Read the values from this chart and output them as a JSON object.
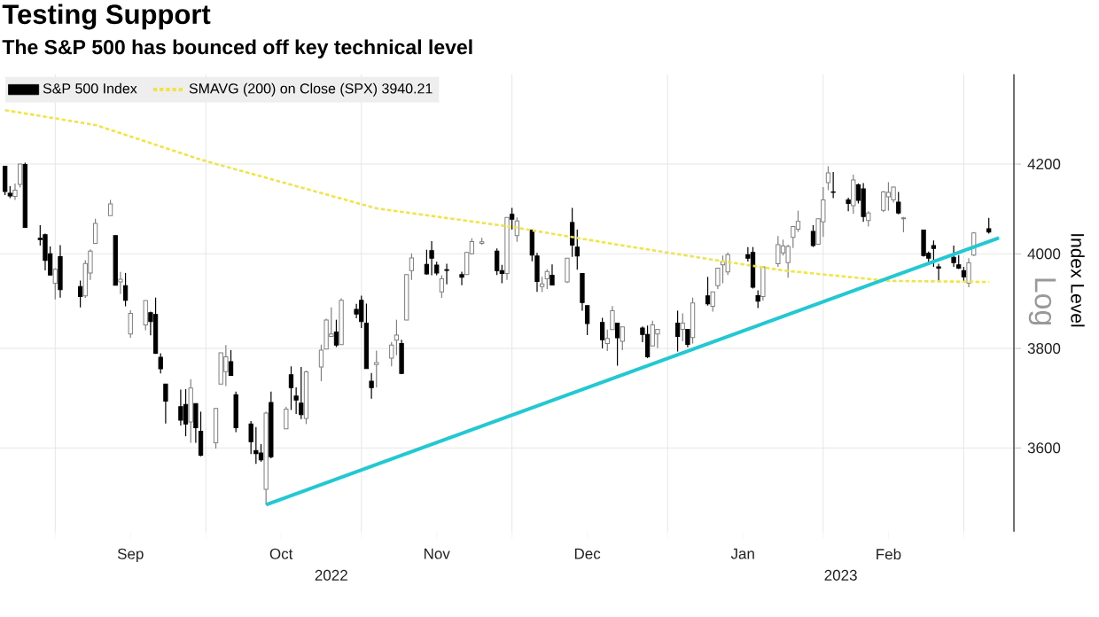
{
  "chart_data": {
    "type": "candlestick",
    "title": "Testing Support",
    "subtitle": "The S&P 500 has bounced off key technical level",
    "ylabel": "Index Level",
    "annotations": [
      "Log",
      "2022",
      "2023"
    ],
    "x": [
      "2022-08-22",
      "2022-08-23",
      "2022-08-24",
      "2022-08-25",
      "2022-08-26",
      "2022-08-29",
      "2022-08-30",
      "2022-08-31",
      "2022-09-01",
      "2022-09-02",
      "2022-09-06",
      "2022-09-07",
      "2022-09-08",
      "2022-09-09",
      "2022-09-12",
      "2022-09-13",
      "2022-09-14",
      "2022-09-15",
      "2022-09-16",
      "2022-09-19",
      "2022-09-20",
      "2022-09-21",
      "2022-09-22",
      "2022-09-23",
      "2022-09-26",
      "2022-09-27",
      "2022-09-28",
      "2022-09-29",
      "2022-09-30",
      "2022-10-03",
      "2022-10-04",
      "2022-10-05",
      "2022-10-06",
      "2022-10-07",
      "2022-10-10",
      "2022-10-11",
      "2022-10-12",
      "2022-10-13",
      "2022-10-14",
      "2022-10-17",
      "2022-10-18",
      "2022-10-19",
      "2022-10-20",
      "2022-10-21",
      "2022-10-24",
      "2022-10-25",
      "2022-10-26",
      "2022-10-27",
      "2022-10-28",
      "2022-10-31",
      "2022-11-01",
      "2022-11-02",
      "2022-11-03",
      "2022-11-04",
      "2022-11-07",
      "2022-11-08",
      "2022-11-09",
      "2022-11-10",
      "2022-11-11",
      "2022-11-14",
      "2022-11-15",
      "2022-11-16",
      "2022-11-17",
      "2022-11-18",
      "2022-11-21",
      "2022-11-22",
      "2022-11-23",
      "2022-11-25",
      "2022-11-28",
      "2022-11-29",
      "2022-11-30",
      "2022-12-01",
      "2022-12-02",
      "2022-12-05",
      "2022-12-06",
      "2022-12-07",
      "2022-12-08",
      "2022-12-09",
      "2022-12-12",
      "2022-12-13",
      "2022-12-14",
      "2022-12-15",
      "2022-12-16",
      "2022-12-19",
      "2022-12-20",
      "2022-12-21",
      "2022-12-22",
      "2022-12-23",
      "2022-12-27",
      "2022-12-28",
      "2022-12-29",
      "2022-12-30",
      "2023-01-03",
      "2023-01-04",
      "2023-01-05",
      "2023-01-06",
      "2023-01-09",
      "2023-01-10",
      "2023-01-11",
      "2023-01-12",
      "2023-01-13",
      "2023-01-17",
      "2023-01-18",
      "2023-01-19",
      "2023-01-20",
      "2023-01-23",
      "2023-01-24",
      "2023-01-25",
      "2023-01-26",
      "2023-01-27",
      "2023-01-30",
      "2023-01-31",
      "2023-02-01",
      "2023-02-02",
      "2023-02-03",
      "2023-02-06",
      "2023-02-07",
      "2023-02-08",
      "2023-02-09",
      "2023-02-10",
      "2023-02-13",
      "2023-02-14",
      "2023-02-15",
      "2023-02-16",
      "2023-02-17",
      "2023-02-21",
      "2023-02-22",
      "2023-02-23",
      "2023-02-24",
      "2023-02-27",
      "2023-02-28",
      "2023-03-01",
      "2023-03-02",
      "2023-03-03",
      "2023-03-06"
    ],
    "series": [
      {
        "name": "S&P 500 Index",
        "color": "#000000",
        "colors": [
          "#000000",
          "#000000",
          "#ffffff",
          "#ffffff",
          "#000000",
          "#000000",
          "#000000",
          "#000000",
          "#ffffff",
          "#000000",
          "#000000",
          "#ffffff",
          "#ffffff",
          "#ffffff",
          "#ffffff",
          "#000000",
          "#ffffff",
          "#000000",
          "#ffffff",
          "#ffffff",
          "#000000",
          "#000000",
          "#000000",
          "#000000",
          "#000000",
          "#000000",
          "#ffffff",
          "#000000",
          "#000000",
          "#ffffff",
          "#ffffff",
          "#ffffff",
          "#000000",
          "#000000",
          "#000000",
          "#000000",
          "#000000",
          "#ffffff",
          "#000000",
          "#ffffff",
          "#000000",
          "#000000",
          "#000000",
          "#ffffff",
          "#ffffff",
          "#ffffff",
          "#ffffff",
          "#000000",
          "#ffffff",
          "#000000",
          "#000000",
          "#000000",
          "#000000",
          "#ffffff",
          "#ffffff",
          "#ffffff",
          "#000000",
          "#ffffff",
          "#ffffff",
          "#000000",
          "#000000",
          "#000000",
          "#ffffff",
          "#000000",
          "#000000",
          "#ffffff",
          "#ffffff",
          "#ffffff",
          "#000000",
          "#000000",
          "#ffffff",
          "#000000",
          "#ffffff",
          "#000000",
          "#000000",
          "#ffffff",
          "#ffffff",
          "#000000",
          "#ffffff",
          "#000000",
          "#000000",
          "#000000",
          "#000000",
          "#000000",
          "#ffffff",
          "#ffffff",
          "#000000",
          "#ffffff",
          "#000000",
          "#000000",
          "#ffffff",
          "#ffffff",
          "#000000",
          "#ffffff",
          "#000000",
          "#ffffff",
          "#000000",
          "#ffffff",
          "#ffffff",
          "#ffffff",
          "#ffffff",
          "#000000",
          "#000000",
          "#000000",
          "#ffffff",
          "#ffffff",
          "#ffffff",
          "#ffffff",
          "#ffffff",
          "#ffffff",
          "#000000",
          "#ffffff",
          "#ffffff",
          "#ffffff",
          "#000000",
          "#000000",
          "#ffffff",
          "#000000",
          "#000000",
          "#ffffff",
          "#ffffff",
          "#ffffff",
          "#ffffff",
          "#000000",
          "#ffffff",
          "#000000",
          "#000000",
          "#000000",
          "#000000",
          "#000000",
          "#000000",
          "#000000",
          "#ffffff",
          "#ffffff",
          "#000000"
        ],
        "ohlc": [
          [
            4195,
            4196,
            4130,
            4138
          ],
          [
            4134,
            4150,
            4123,
            4128
          ],
          [
            4127,
            4156,
            4119,
            4141
          ],
          [
            4154,
            4200,
            4147,
            4200
          ],
          [
            4199,
            4203,
            4057,
            4058
          ],
          [
            4034,
            4063,
            4018,
            4031
          ],
          [
            4042,
            4044,
            3965,
            3986
          ],
          [
            4000,
            4016,
            3954,
            3955
          ],
          [
            3937,
            3970,
            3903,
            3967
          ],
          [
            3995,
            4019,
            3907,
            3924
          ],
          [
            3930,
            3943,
            3886,
            3909
          ],
          [
            3910,
            3987,
            3906,
            3980
          ],
          [
            3959,
            4010,
            3944,
            4006
          ],
          [
            4023,
            4077,
            4023,
            4067
          ],
          [
            4084,
            4119,
            4084,
            4110
          ],
          [
            4040,
            4040,
            3933,
            3933
          ],
          [
            3940,
            3961,
            3914,
            3946
          ],
          [
            3932,
            3959,
            3888,
            3901
          ],
          [
            3830,
            3880,
            3822,
            3873
          ],
          [
            3849,
            3900,
            3838,
            3900
          ],
          [
            3875,
            3877,
            3827,
            3856
          ],
          [
            3871,
            3907,
            3789,
            3790
          ],
          [
            3782,
            3790,
            3749,
            3758
          ],
          [
            3727,
            3727,
            3648,
            3693
          ],
          [
            3682,
            3716,
            3644,
            3655
          ],
          [
            3686,
            3717,
            3623,
            3647
          ],
          [
            3651,
            3737,
            3610,
            3719
          ],
          [
            3688,
            3688,
            3610,
            3640
          ],
          [
            3633,
            3672,
            3584,
            3586
          ],
          [
            3610,
            3679,
            3599,
            3678
          ],
          [
            3727,
            3791,
            3727,
            3791
          ],
          [
            3753,
            3807,
            3723,
            3783
          ],
          [
            3773,
            3797,
            3744,
            3745
          ],
          [
            3706,
            3712,
            3631,
            3640
          ],
          [
            3647,
            3653,
            3588,
            3612
          ],
          [
            3595,
            3641,
            3569,
            3589
          ],
          [
            3590,
            3608,
            3573,
            3577
          ],
          [
            3520,
            3672,
            3491,
            3669
          ],
          [
            3690,
            3712,
            3580,
            3583
          ],
          [
            3638,
            3682,
            3638,
            3677
          ],
          [
            3746,
            3763,
            3675,
            3720
          ],
          [
            3703,
            3721,
            3667,
            3695
          ],
          [
            3689,
            3762,
            3657,
            3666
          ],
          [
            3658,
            3755,
            3647,
            3752
          ],
          [
            3762,
            3808,
            3733,
            3797
          ],
          [
            3799,
            3862,
            3799,
            3859
          ],
          [
            3825,
            3886,
            3824,
            3830
          ],
          [
            3834,
            3860,
            3803,
            3807
          ],
          [
            3808,
            3905,
            3808,
            3901
          ],
          [
            3882,
            3893,
            3863,
            3872
          ],
          [
            3901,
            3911,
            3843,
            3856
          ],
          [
            3853,
            3894,
            3758,
            3759
          ],
          [
            3733,
            3750,
            3698,
            3720
          ],
          [
            3767,
            3796,
            3721,
            3771
          ],
          [
            3780,
            3814,
            3763,
            3807
          ],
          [
            3817,
            3860,
            3786,
            3828
          ],
          [
            3810,
            3818,
            3748,
            3749
          ],
          [
            3859,
            3956,
            3859,
            3956
          ],
          [
            3964,
            4001,
            3944,
            3992
          ],
          [
            3978,
            4009,
            3956,
            3957
          ],
          [
            4007,
            4028,
            3954,
            3991
          ],
          [
            3976,
            3983,
            3954,
            3959
          ],
          [
            3919,
            3954,
            3906,
            3947
          ],
          [
            3966,
            3979,
            3935,
            3965
          ],
          [
            3956,
            3962,
            3933,
            3950
          ],
          [
            3956,
            4004,
            3956,
            4003
          ],
          [
            4000,
            4034,
            3999,
            4027
          ],
          [
            4023,
            4035,
            4020,
            4026
          ],
          [
            4006,
            4012,
            3955,
            3964
          ],
          [
            3964,
            3977,
            3937,
            3958
          ],
          [
            3958,
            4080,
            3944,
            4080
          ],
          [
            4087,
            4101,
            4053,
            4076
          ],
          [
            4040,
            4080,
            4026,
            4072
          ],
          [
            4052,
            4053,
            3985,
            3998
          ],
          [
            3996,
            4002,
            3919,
            3941
          ],
          [
            3930,
            3951,
            3918,
            3936
          ],
          [
            3947,
            3967,
            3925,
            3963
          ],
          [
            3954,
            3978,
            3934,
            3934
          ],
          [
            3940,
            3991,
            3938,
            3991
          ],
          [
            4069,
            4101,
            3994,
            4019
          ],
          [
            4015,
            4053,
            3966,
            3996
          ],
          [
            3958,
            3958,
            3879,
            3896
          ],
          [
            3890,
            3890,
            3828,
            3852
          ],
          [
            3854,
            3864,
            3800,
            3818
          ],
          [
            3810,
            3839,
            3795,
            3821
          ],
          [
            3839,
            3889,
            3839,
            3879
          ],
          [
            3853,
            3853,
            3765,
            3822
          ],
          [
            3815,
            3845,
            3797,
            3845
          ],
          [
            3843,
            3846,
            3813,
            3829
          ],
          [
            3829,
            3848,
            3780,
            3783
          ],
          [
            3805,
            3858,
            3805,
            3849
          ],
          [
            3830,
            3840,
            3801,
            3840
          ],
          [
            3853,
            3879,
            3794,
            3825
          ],
          [
            3840,
            3873,
            3815,
            3853
          ],
          [
            3840,
            3840,
            3802,
            3809
          ],
          [
            3823,
            3907,
            3810,
            3895
          ],
          [
            3910,
            3951,
            3890,
            3893
          ],
          [
            3888,
            3919,
            3877,
            3919
          ],
          [
            3932,
            3970,
            3925,
            3970
          ],
          [
            3977,
            3997,
            3937,
            3983
          ],
          [
            3961,
            4003,
            3955,
            3999
          ],
          [
            3999,
            4015,
            3984,
            3991
          ],
          [
            4003,
            4015,
            3926,
            3929
          ],
          [
            3911,
            3922,
            3885,
            3899
          ],
          [
            3909,
            3973,
            3900,
            3973
          ],
          [
            3979,
            4039,
            3973,
            4020
          ],
          [
            4002,
            4031,
            3997,
            4017
          ],
          [
            3982,
            4020,
            3949,
            4016
          ],
          [
            4036,
            4061,
            4013,
            4060
          ],
          [
            4054,
            4095,
            4048,
            4071
          ],
          [
            4049,
            4063,
            4015,
            4018
          ],
          [
            4021,
            4077,
            4020,
            4077
          ],
          [
            4070,
            4148,
            4037,
            4119
          ],
          [
            4158,
            4195,
            4141,
            4180
          ],
          [
            4137,
            4182,
            4123,
            4136
          ],
          [
            4119,
            4124,
            4094,
            4111
          ],
          [
            4106,
            4176,
            4088,
            4164
          ],
          [
            4153,
            4156,
            4111,
            4118
          ],
          [
            4144,
            4157,
            4070,
            4082
          ],
          [
            4073,
            4094,
            4060,
            4090
          ],
          [
            4096,
            4139,
            4092,
            4137
          ],
          [
            4126,
            4159,
            4095,
            4136
          ],
          [
            4119,
            4149,
            4113,
            4148
          ],
          [
            4114,
            4137,
            4087,
            4090
          ],
          [
            4077,
            4081,
            4047,
            4079
          ],
          [
            4052,
            4052,
            3995,
            3997
          ],
          [
            4001,
            4005,
            3977,
            3991
          ],
          [
            4018,
            4029,
            3972,
            4012
          ],
          [
            3973,
            3979,
            3943,
            3970
          ],
          [
            3993,
            4018,
            3973,
            3982
          ],
          [
            3977,
            3998,
            3968,
            3970
          ],
          [
            3964,
            3972,
            3939,
            3951
          ],
          [
            3938,
            3991,
            3929,
            3981
          ],
          [
            3998,
            4048,
            3996,
            4046
          ],
          [
            4055,
            4079,
            4044,
            4048
          ]
        ]
      },
      {
        "name": "SMAVG (200)  on Close (SPX) 3940.21",
        "type": "line",
        "color": "#f0e448",
        "line_style": "dotted",
        "x": [
          "2022-08-22",
          "2022-09-09",
          "2022-09-30",
          "2022-10-19",
          "2022-11-04",
          "2022-12-01",
          "2022-12-22",
          "2023-01-09",
          "2023-01-24",
          "2023-02-14",
          "2023-03-06"
        ],
        "values": [
          4325,
          4290,
          4210,
          4150,
          4100,
          4059,
          4020,
          3990,
          3965,
          3942,
          3940.21
        ]
      },
      {
        "type": "line",
        "color": "#22c8d2",
        "line_style": "solid",
        "x": [
          "2022-10-13",
          "2023-03-08"
        ],
        "values": [
          3491,
          4035
        ]
      }
    ],
    "xlim": [
      "2022-08-21",
      "2023-03-11"
    ],
    "xticks": [
      {
        "value": "2022-09-01",
        "label": null
      },
      {
        "value": "2022-10-01",
        "label": null
      },
      {
        "value": "2022-11-01",
        "label": null
      },
      {
        "value": "2022-12-01",
        "label": null
      },
      {
        "value": "2023-01-01",
        "label": null
      },
      {
        "value": "2023-02-01",
        "label": null
      },
      {
        "value": "2023-03-01",
        "label": null
      },
      {
        "value": "2022-09-16",
        "label": "Sep"
      },
      {
        "value": "2022-10-16",
        "label": "Oct"
      },
      {
        "value": "2022-11-16",
        "label": "Nov"
      },
      {
        "value": "2022-12-16",
        "label": "Dec"
      },
      {
        "value": "2023-01-16",
        "label": "Jan"
      },
      {
        "value": "2023-02-14",
        "label": "Feb"
      }
    ],
    "ylim": [
      3440,
      4410
    ],
    "yticks": [
      3600,
      3800,
      4000,
      4200
    ],
    "log": "y",
    "grid": true,
    "legend": "top left"
  }
}
